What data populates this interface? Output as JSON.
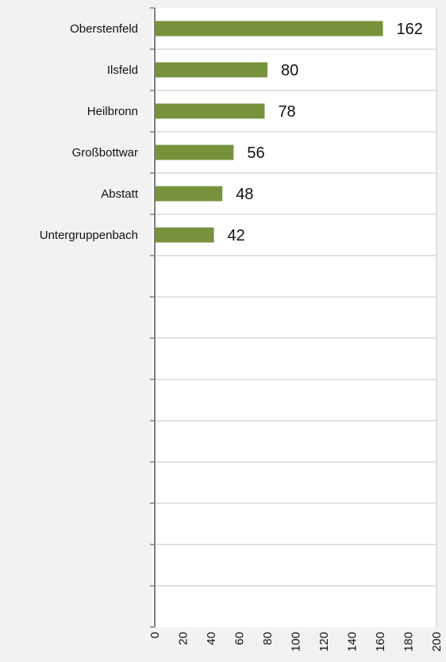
{
  "chart_data": {
    "type": "bar",
    "orientation": "horizontal",
    "categories": [
      "Oberstenfeld",
      "Ilsfeld",
      "Heilbronn",
      "Großbottwar",
      "Abstatt",
      "Untergruppenbach"
    ],
    "values": [
      162,
      80,
      78,
      56,
      48,
      42
    ],
    "value_labels": [
      "162",
      "80",
      "78",
      "56",
      "48",
      "42"
    ],
    "empty_category_slots": 9,
    "title": "",
    "xlabel": "",
    "ylabel": "",
    "xlim": [
      0,
      200
    ],
    "x_ticks": [
      "0",
      "20",
      "40",
      "60",
      "80",
      "100",
      "120",
      "140",
      "160",
      "180",
      "200"
    ],
    "grid": "horizontal",
    "legend": "none"
  },
  "colors": {
    "background": "#f2f2f2",
    "plot_area": "#ffffff",
    "bar": "#76933c",
    "gridline": "#d9d9d9",
    "axis": "#7f7f7f"
  }
}
